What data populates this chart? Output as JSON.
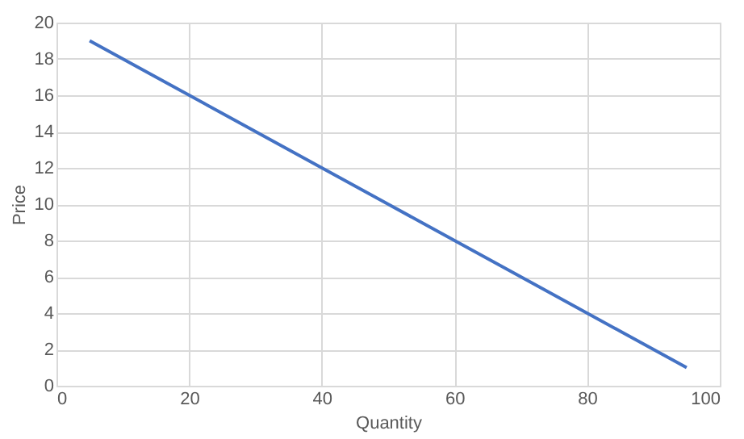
{
  "chart_data": {
    "type": "line",
    "xlabel": "Quantity",
    "ylabel": "Price",
    "x": [
      5,
      15,
      25,
      35,
      45,
      55,
      65,
      75,
      85,
      95
    ],
    "series": [
      {
        "color": "#4472c4",
        "values": [
          19,
          17,
          15,
          13,
          11,
          9,
          7,
          5,
          3,
          1
        ]
      }
    ],
    "xlim": [
      0,
      100
    ],
    "xticks": [
      0,
      20,
      40,
      60,
      80,
      100
    ],
    "ylim": [
      0,
      20
    ],
    "yticks": [
      0,
      2,
      4,
      6,
      8,
      10,
      12,
      14,
      16,
      18,
      20
    ],
    "grid": true,
    "marker": "none",
    "line_style": "solid"
  }
}
